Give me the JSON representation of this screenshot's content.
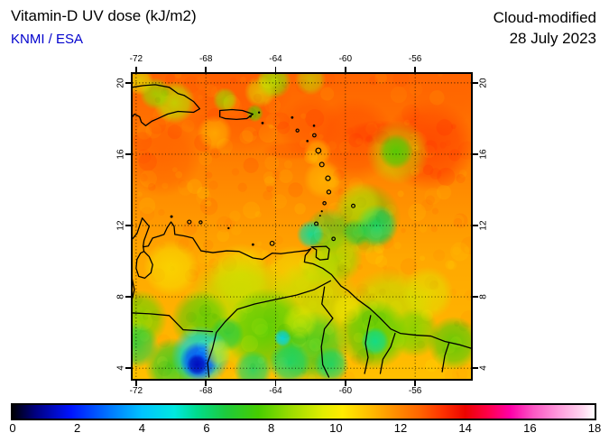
{
  "header": {
    "title": "Vitamin-D UV dose (kJ/m2)",
    "credit": "KNMI / ESA",
    "mode": "Cloud-modified",
    "date": "28 July 2023"
  },
  "map": {
    "lon_min": -72.2,
    "lon_max": -52.8,
    "lat_min": 3.4,
    "lat_max": 20.5,
    "lon_ticks": [
      -72,
      -68,
      -64,
      -60,
      -56
    ],
    "lat_ticks": [
      20,
      16,
      12,
      8,
      4
    ],
    "grid_style": "dotted"
  },
  "colorbar": {
    "min": 0,
    "max": 18,
    "tick_labels": [
      "0",
      "2",
      "4",
      "6",
      "8",
      "10",
      "12",
      "14",
      "16",
      "18"
    ],
    "stops": [
      {
        "v": 0,
        "c": "#000006"
      },
      {
        "v": 0.7,
        "c": "#000080"
      },
      {
        "v": 1.8,
        "c": "#0014ff"
      },
      {
        "v": 3,
        "c": "#0078ff"
      },
      {
        "v": 4,
        "c": "#00c3ff"
      },
      {
        "v": 5,
        "c": "#00e8e0"
      },
      {
        "v": 5.7,
        "c": "#00dc8c"
      },
      {
        "v": 6.6,
        "c": "#1ecb3c"
      },
      {
        "v": 7.6,
        "c": "#46cd00"
      },
      {
        "v": 8.6,
        "c": "#9bdc00"
      },
      {
        "v": 9.6,
        "c": "#e1ed00"
      },
      {
        "v": 10.2,
        "c": "#ffec00"
      },
      {
        "v": 11,
        "c": "#ffc000"
      },
      {
        "v": 11.8,
        "c": "#ff9000"
      },
      {
        "v": 12.6,
        "c": "#ff6400"
      },
      {
        "v": 13.3,
        "c": "#ff3200"
      },
      {
        "v": 14,
        "c": "#ec0400"
      },
      {
        "v": 14.7,
        "c": "#ff0049"
      },
      {
        "v": 15.4,
        "c": "#ff00a8"
      },
      {
        "v": 16.1,
        "c": "#fb57c4"
      },
      {
        "v": 16.9,
        "c": "#ff9cdd"
      },
      {
        "v": 17.6,
        "c": "#ffd4ef"
      },
      {
        "v": 18,
        "c": "#ffffff"
      }
    ]
  },
  "field": {
    "base": [
      {
        "lat": 20.5,
        "v": 12.6
      },
      {
        "lat": 17.0,
        "v": 12.3
      },
      {
        "lat": 14.0,
        "v": 11.9
      },
      {
        "lat": 10.0,
        "v": 11.4
      },
      {
        "lat": 6.0,
        "v": 11.2
      },
      {
        "lat": 3.4,
        "v": 11.0
      }
    ],
    "blob_format": [
      "lon",
      "lat",
      "radius_deg",
      "value_kjm2",
      "alpha",
      "aspect"
    ],
    "blobs": [
      [
        -66,
        19,
        3,
        12.8,
        0.5
      ],
      [
        -59.5,
        16.8,
        2.4,
        13,
        0.6
      ],
      [
        -55.2,
        16.5,
        2.6,
        13.2,
        0.7
      ],
      [
        -62,
        17.5,
        1.8,
        12.9,
        0.5
      ],
      [
        -70.5,
        15.8,
        2.2,
        12.9,
        0.45
      ],
      [
        -54.5,
        19.5,
        2.2,
        12.6,
        0.5
      ],
      [
        -58,
        17.2,
        2.0,
        13.3,
        0.5,
        0.35
      ],
      [
        -63,
        16.2,
        1.8,
        12.9,
        0.4,
        0.3
      ],
      [
        -68,
        17.8,
        1.5,
        12.7,
        0.4,
        0.35
      ],
      [
        -69.8,
        18.9,
        1.2,
        9,
        0.8
      ],
      [
        -70.9,
        19.4,
        0.9,
        8.5,
        0.8
      ],
      [
        -71.8,
        20.1,
        0.8,
        9.5,
        0.7
      ],
      [
        -64.1,
        20.1,
        1.0,
        8.5,
        0.85
      ],
      [
        -64.9,
        19.5,
        0.9,
        9.5,
        0.6
      ],
      [
        -62.0,
        20.2,
        0.9,
        9,
        0.6
      ],
      [
        -66.9,
        19.05,
        0.7,
        8.5,
        0.75
      ],
      [
        -65.2,
        18.3,
        0.5,
        8,
        0.8
      ],
      [
        -67.5,
        17.2,
        1.0,
        10.5,
        0.5
      ],
      [
        -57.0,
        16.1,
        1.8,
        9,
        0.55
      ],
      [
        -57.1,
        16.15,
        1.0,
        7.5,
        0.85
      ],
      [
        -58.8,
        12.4,
        2.0,
        7.5,
        0.55
      ],
      [
        -58.2,
        12.0,
        1.2,
        6,
        0.85
      ],
      [
        -59.4,
        11.6,
        0.8,
        6.5,
        0.7
      ],
      [
        -61.0,
        11.7,
        1.3,
        7,
        0.6
      ],
      [
        -62.0,
        11.5,
        0.8,
        5.5,
        0.85
      ],
      [
        -59.2,
        13.2,
        1.3,
        9.5,
        0.5
      ],
      [
        -60.5,
        10.2,
        1.5,
        8.5,
        0.75
      ],
      [
        -61.5,
        9.7,
        1.2,
        9,
        0.6
      ],
      [
        -70,
        9.6,
        1.6,
        10,
        0.6
      ],
      [
        -66,
        9.2,
        1.8,
        9.8,
        0.6
      ],
      [
        -63,
        9.3,
        1.6,
        9.8,
        0.5
      ],
      [
        -66,
        7.2,
        3.2,
        9,
        0.75
      ],
      [
        -61.8,
        7.3,
        2.8,
        9,
        0.7
      ],
      [
        -57.5,
        7,
        2.6,
        9,
        0.7
      ],
      [
        -64.5,
        6.1,
        2.4,
        7.5,
        0.8
      ],
      [
        -61.8,
        5.2,
        2.0,
        7,
        0.8
      ],
      [
        -58.4,
        5.9,
        2.0,
        7.5,
        0.8
      ],
      [
        -68.3,
        6.7,
        1.7,
        7.5,
        0.7
      ],
      [
        -71.8,
        6.8,
        1.6,
        8,
        0.8
      ],
      [
        -72,
        5.3,
        1.3,
        6.5,
        0.8
      ],
      [
        -69.9,
        4.1,
        1.6,
        7,
        0.85
      ],
      [
        -66.8,
        5.9,
        1.0,
        6.5,
        0.8
      ],
      [
        -65.3,
        3.9,
        1.1,
        6,
        0.8
      ],
      [
        -63.2,
        4.3,
        1.2,
        6,
        0.85
      ],
      [
        -60.8,
        4.2,
        1.0,
        6,
        0.8
      ],
      [
        -58.3,
        5.5,
        0.8,
        5.5,
        0.8
      ],
      [
        -63.6,
        5.7,
        0.5,
        4.5,
        0.9
      ],
      [
        -56.0,
        6.0,
        1.4,
        8,
        0.7
      ],
      [
        -53.8,
        5.4,
        1.5,
        7.5,
        0.8
      ],
      [
        -55.3,
        8.2,
        1.5,
        9.5,
        0.6
      ],
      [
        -68.3,
        4.7,
        1.7,
        4.5,
        0.9
      ],
      [
        -68.4,
        4.4,
        1.1,
        2.5,
        0.95
      ],
      [
        -68.5,
        4.2,
        0.6,
        1.2,
        0.95
      ],
      [
        -67.3,
        4.9,
        0.8,
        9.5,
        0.6
      ],
      [
        -62.6,
        6.6,
        1.0,
        9.5,
        0.6
      ],
      [
        -59.9,
        7.3,
        0.9,
        10,
        0.6
      ],
      [
        -61.3,
        14.6,
        1.1,
        10.5,
        0.45
      ],
      [
        -61.6,
        16.1,
        0.8,
        10.3,
        0.45
      ]
    ]
  },
  "geo": {
    "lines": [
      {
        "name": "hispaniola",
        "closed": false,
        "pts": [
          [
            -72.25,
            19.75
          ],
          [
            -71.6,
            19.85
          ],
          [
            -70.9,
            19.9
          ],
          [
            -70.1,
            19.75
          ],
          [
            -69.6,
            19.4
          ],
          [
            -69.25,
            19.3
          ],
          [
            -68.7,
            18.95
          ],
          [
            -68.35,
            18.55
          ],
          [
            -68.7,
            18.35
          ],
          [
            -69.6,
            18.4
          ],
          [
            -70.2,
            18.25
          ],
          [
            -70.75,
            18.0
          ],
          [
            -71.1,
            17.85
          ],
          [
            -71.45,
            17.6
          ],
          [
            -71.7,
            17.8
          ],
          [
            -71.8,
            18.1
          ],
          [
            -72.1,
            18.25
          ],
          [
            -72.25,
            18.05
          ]
        ]
      },
      {
        "name": "puerto-rico",
        "closed": true,
        "pts": [
          [
            -67.2,
            18.45
          ],
          [
            -66.5,
            18.5
          ],
          [
            -65.9,
            18.45
          ],
          [
            -65.6,
            18.35
          ],
          [
            -65.3,
            18.25
          ],
          [
            -65.65,
            18.0
          ],
          [
            -66.25,
            17.95
          ],
          [
            -66.9,
            18.0
          ],
          [
            -67.2,
            18.1
          ]
        ]
      },
      {
        "name": "trinidad",
        "closed": true,
        "pts": [
          [
            -61.95,
            10.8
          ],
          [
            -61.1,
            10.83
          ],
          [
            -60.92,
            10.68
          ],
          [
            -61.0,
            10.12
          ],
          [
            -61.45,
            10.07
          ],
          [
            -61.68,
            10.22
          ],
          [
            -61.66,
            10.64
          ]
        ]
      },
      {
        "name": "mainland-coast",
        "closed": false,
        "pts": [
          [
            -72.25,
            11.2
          ],
          [
            -71.95,
            11.55
          ],
          [
            -71.65,
            12.42
          ],
          [
            -71.25,
            11.95
          ],
          [
            -71.55,
            11.15
          ],
          [
            -71.6,
            10.8
          ],
          [
            -71.3,
            10.85
          ],
          [
            -71.05,
            11.3
          ],
          [
            -70.7,
            11.4
          ],
          [
            -70.4,
            11.5
          ],
          [
            -70.22,
            11.88
          ],
          [
            -70.0,
            12.2
          ],
          [
            -69.82,
            11.95
          ],
          [
            -69.78,
            11.5
          ],
          [
            -69.25,
            11.42
          ],
          [
            -68.75,
            11.3
          ],
          [
            -68.28,
            10.58
          ],
          [
            -67.6,
            10.48
          ],
          [
            -66.8,
            10.58
          ],
          [
            -66.1,
            10.55
          ],
          [
            -65.3,
            10.18
          ],
          [
            -64.75,
            10.1
          ],
          [
            -64.2,
            10.45
          ],
          [
            -63.7,
            10.42
          ],
          [
            -62.9,
            10.52
          ],
          [
            -62.2,
            10.6
          ],
          [
            -61.98,
            10.7
          ],
          [
            -62.3,
            10.32
          ],
          [
            -62.35,
            9.95
          ],
          [
            -61.85,
            9.85
          ],
          [
            -61.3,
            9.6
          ],
          [
            -60.8,
            9.25
          ],
          [
            -60.25,
            8.6
          ],
          [
            -59.85,
            8.35
          ],
          [
            -59.3,
            7.85
          ],
          [
            -58.6,
            7.35
          ],
          [
            -58.05,
            6.85
          ],
          [
            -57.4,
            6.2
          ],
          [
            -56.85,
            5.95
          ],
          [
            -55.95,
            5.85
          ],
          [
            -55.1,
            5.8
          ],
          [
            -54.3,
            5.5
          ],
          [
            -53.4,
            5.3
          ],
          [
            -52.75,
            5.1
          ]
        ]
      },
      {
        "name": "lake-maracaibo",
        "closed": true,
        "pts": [
          [
            -71.55,
            10.55
          ],
          [
            -71.25,
            10.25
          ],
          [
            -71.05,
            9.8
          ],
          [
            -71.15,
            9.35
          ],
          [
            -71.5,
            9.05
          ],
          [
            -71.85,
            9.15
          ],
          [
            -72.0,
            9.6
          ],
          [
            -71.95,
            10.1
          ],
          [
            -71.75,
            10.45
          ]
        ]
      },
      {
        "name": "maracaibo-neck",
        "closed": false,
        "pts": [
          [
            -71.55,
            10.55
          ],
          [
            -71.6,
            10.85
          ]
        ]
      },
      {
        "name": "orinoco-river",
        "closed": false,
        "pts": [
          [
            -60.85,
            8.9
          ],
          [
            -61.8,
            8.4
          ],
          [
            -62.8,
            8.1
          ],
          [
            -64.0,
            7.85
          ],
          [
            -65.2,
            7.6
          ],
          [
            -66.2,
            7.3
          ],
          [
            -66.9,
            6.6
          ],
          [
            -67.4,
            6.0
          ],
          [
            -67.62,
            5.1
          ],
          [
            -67.9,
            4.3
          ],
          [
            -67.82,
            3.5
          ]
        ]
      },
      {
        "name": "colombia-venezuela-border",
        "closed": false,
        "pts": [
          [
            -72.25,
            7.1
          ],
          [
            -71.2,
            7.05
          ],
          [
            -70.1,
            6.95
          ],
          [
            -69.3,
            6.15
          ],
          [
            -68.4,
            6.1
          ],
          [
            -67.62,
            6.05
          ]
        ]
      },
      {
        "name": "west-border",
        "closed": false,
        "pts": [
          [
            -72.25,
            9.1
          ],
          [
            -72.1,
            8.4
          ],
          [
            -72.25,
            7.8
          ]
        ]
      },
      {
        "name": "venezuela-guyana-border",
        "closed": false,
        "pts": [
          [
            -61.2,
            8.55
          ],
          [
            -61.35,
            7.6
          ],
          [
            -60.72,
            6.8
          ],
          [
            -61.2,
            6.2
          ],
          [
            -61.38,
            5.2
          ],
          [
            -61.3,
            4.2
          ],
          [
            -60.95,
            3.5
          ]
        ]
      },
      {
        "name": "essequibo-river",
        "closed": false,
        "pts": [
          [
            -58.55,
            6.95
          ],
          [
            -58.72,
            6.2
          ],
          [
            -58.85,
            5.4
          ],
          [
            -58.7,
            4.6
          ],
          [
            -58.9,
            3.7
          ]
        ]
      },
      {
        "name": "guyana-suriname-border",
        "closed": false,
        "pts": [
          [
            -57.15,
            5.95
          ],
          [
            -57.4,
            5.2
          ],
          [
            -57.85,
            4.5
          ],
          [
            -58.0,
            3.7
          ]
        ]
      },
      {
        "name": "suriname-guiana-border",
        "closed": false,
        "pts": [
          [
            -54.05,
            5.45
          ],
          [
            -54.3,
            4.7
          ],
          [
            -54.45,
            3.8
          ]
        ]
      }
    ],
    "island_format": [
      "lon",
      "lat",
      "radius_px"
    ],
    "islands": [
      [
        -63.05,
        18.06,
        1.4
      ],
      [
        -62.75,
        17.33,
        1.6
      ],
      [
        -62.18,
        16.74,
        1.3
      ],
      [
        -61.8,
        17.6,
        1.3
      ],
      [
        -61.78,
        17.06,
        1.8
      ],
      [
        -61.55,
        16.2,
        2.8
      ],
      [
        -61.35,
        15.42,
        2.4
      ],
      [
        -61.0,
        14.65,
        2.5
      ],
      [
        -60.95,
        13.88,
        2.1
      ],
      [
        -61.2,
        13.25,
        1.7
      ],
      [
        -61.35,
        12.8,
        1.1
      ],
      [
        -61.45,
        12.55,
        1.0
      ],
      [
        -61.67,
        12.1,
        1.9
      ],
      [
        -59.55,
        13.1,
        1.9
      ],
      [
        -60.68,
        11.25,
        1.8
      ],
      [
        -64.2,
        11.0,
        2.3
      ],
      [
        -65.3,
        10.93,
        1.4
      ],
      [
        -66.7,
        11.85,
        1.2
      ],
      [
        -69.97,
        12.5,
        1.5
      ],
      [
        -68.95,
        12.2,
        2.0
      ],
      [
        -68.3,
        12.18,
        1.6
      ],
      [
        -65.45,
        18.12,
        1.3
      ],
      [
        -64.95,
        18.34,
        1.2
      ],
      [
        -64.75,
        17.75,
        1.4
      ]
    ]
  }
}
